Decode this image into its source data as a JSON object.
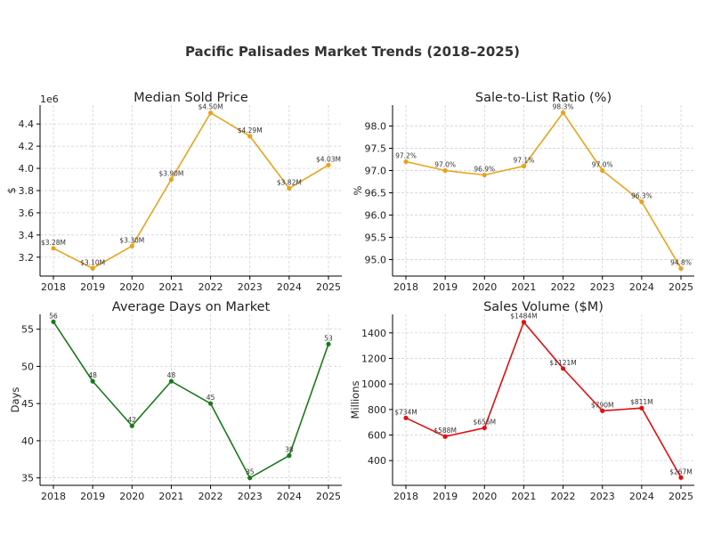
{
  "figure": {
    "title": "Pacific Palisades Market Trends (2018–2025)"
  },
  "chart_data": [
    {
      "type": "line",
      "title": "Median Sold Price",
      "xlabel": "",
      "ylabel": "$",
      "offset_label": "1e6",
      "color": "#e8a31c",
      "x": [
        "2018",
        "2019",
        "2020",
        "2021",
        "2022",
        "2023",
        "2024",
        "2025"
      ],
      "values": [
        3280000,
        3100000,
        3300000,
        3900000,
        4500000,
        4290000,
        3820000,
        4030000
      ],
      "data_labels": [
        "$3.28M",
        "$3.10M",
        "$3.30M",
        "$3.90M",
        "$4.50M",
        "$4.29M",
        "$3.82M",
        "$4.03M"
      ],
      "yticks": [
        3.2,
        3.4,
        3.6,
        3.8,
        4.0,
        4.2,
        4.4
      ],
      "ytick_labels": [
        "3.2",
        "3.4",
        "3.6",
        "3.8",
        "4.0",
        "4.2",
        "4.4"
      ],
      "tick_scale": 1000000,
      "ylim": [
        3.03,
        4.57
      ],
      "grid": true
    },
    {
      "type": "line",
      "title": "Sale-to-List Ratio (%)",
      "xlabel": "",
      "ylabel": "%",
      "color": "#e8a31c",
      "x": [
        "2018",
        "2019",
        "2020",
        "2021",
        "2022",
        "2023",
        "2024",
        "2025"
      ],
      "values": [
        97.2,
        97.0,
        96.9,
        97.1,
        98.3,
        97.0,
        96.3,
        94.8
      ],
      "data_labels": [
        "97.2%",
        "97.0%",
        "96.9%",
        "97.1%",
        "98.3%",
        "97.0%",
        "96.3%",
        "94.8%"
      ],
      "yticks": [
        95.0,
        95.5,
        96.0,
        96.5,
        97.0,
        97.5,
        98.0
      ],
      "ytick_labels": [
        "95.0",
        "95.5",
        "96.0",
        "96.5",
        "97.0",
        "97.5",
        "98.0"
      ],
      "tick_scale": 1,
      "ylim": [
        94.63,
        98.47
      ],
      "grid": true
    },
    {
      "type": "line",
      "title": "Average Days on Market",
      "xlabel": "",
      "ylabel": "Days",
      "color": "#1a7a1a",
      "x": [
        "2018",
        "2019",
        "2020",
        "2021",
        "2022",
        "2023",
        "2024",
        "2025"
      ],
      "values": [
        56,
        48,
        42,
        48,
        45,
        35,
        38,
        53
      ],
      "data_labels": [
        "56",
        "48",
        "42",
        "48",
        "45",
        "35",
        "38",
        "53"
      ],
      "yticks": [
        35,
        40,
        45,
        50,
        55
      ],
      "ytick_labels": [
        "35",
        "40",
        "45",
        "50",
        "55"
      ],
      "tick_scale": 1,
      "ylim": [
        34,
        57
      ],
      "grid": true
    },
    {
      "type": "line",
      "title": "Sales Volume ($M)",
      "xlabel": "",
      "ylabel": "Millions",
      "color": "#e01010",
      "x": [
        "2018",
        "2019",
        "2020",
        "2021",
        "2022",
        "2023",
        "2024",
        "2025"
      ],
      "values": [
        734,
        588,
        656,
        1484,
        1121,
        790,
        811,
        267
      ],
      "data_labels": [
        "$734M",
        "$588M",
        "$656M",
        "$1484M",
        "$1121M",
        "$790M",
        "$811M",
        "$267M"
      ],
      "yticks": [
        400,
        600,
        800,
        1000,
        1200,
        1400
      ],
      "ytick_labels": [
        "400",
        "600",
        "800",
        "1000",
        "1200",
        "1400"
      ],
      "tick_scale": 1,
      "ylim": [
        206,
        1545
      ],
      "grid": true
    }
  ]
}
